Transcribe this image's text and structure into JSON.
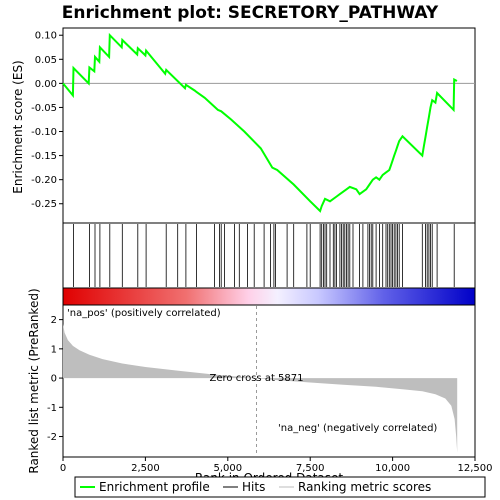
{
  "chart_data": {
    "type": "line",
    "title": "Enrichment plot: SECRETORY_PATHWAY",
    "es_panel": {
      "ylabel": "Enrichment score (ES)",
      "ylim": [
        -0.29,
        0.115
      ],
      "yticks": [
        0.1,
        0.05,
        0.0,
        -0.05,
        -0.1,
        -0.15,
        -0.2,
        -0.25
      ],
      "ytick_labels": [
        "0.10",
        "0.05",
        "0.00",
        "-0.05",
        "-0.10",
        "-0.15",
        "-0.20",
        "-0.25"
      ],
      "series": [
        {
          "name": "Enrichment profile",
          "color": "#00ff00",
          "x": [
            0,
            300,
            320,
            780,
            800,
            950,
            970,
            1100,
            1120,
            1400,
            1420,
            1780,
            1800,
            2250,
            2270,
            2500,
            2520,
            3100,
            3130,
            3700,
            3730,
            4000,
            4050,
            4300,
            4700,
            4800,
            5100,
            5500,
            6000,
            6350,
            6500,
            7000,
            7500,
            7800,
            7850,
            7950,
            8100,
            8300,
            8400,
            8500,
            8600,
            8700,
            8900,
            9000,
            9100,
            9200,
            9300,
            9400,
            9500,
            9600,
            9700,
            9800,
            9900,
            9950,
            10000,
            10050,
            10100,
            10150,
            10200,
            10300,
            10900,
            10950,
            11000,
            11050,
            11100,
            11150,
            11200,
            11300,
            11350,
            11850,
            11870,
            11950
          ],
          "y": [
            0.0,
            -0.025,
            0.032,
            0.0,
            0.033,
            0.025,
            0.055,
            0.045,
            0.075,
            0.055,
            0.1,
            0.075,
            0.09,
            0.06,
            0.073,
            0.058,
            0.068,
            0.02,
            0.028,
            -0.01,
            -0.003,
            -0.015,
            -0.018,
            -0.03,
            -0.055,
            -0.058,
            -0.075,
            -0.1,
            -0.135,
            -0.175,
            -0.18,
            -0.21,
            -0.245,
            -0.265,
            -0.255,
            -0.24,
            -0.245,
            -0.235,
            -0.23,
            -0.225,
            -0.22,
            -0.215,
            -0.22,
            -0.23,
            -0.225,
            -0.22,
            -0.21,
            -0.2,
            -0.195,
            -0.2,
            -0.19,
            -0.185,
            -0.18,
            -0.17,
            -0.16,
            -0.15,
            -0.14,
            -0.13,
            -0.12,
            -0.11,
            -0.15,
            -0.13,
            -0.11,
            -0.09,
            -0.07,
            -0.05,
            -0.035,
            -0.04,
            -0.02,
            -0.055,
            0.008,
            0.005
          ]
        }
      ]
    },
    "hits_panel": {
      "series_name": "Hits",
      "hit_positions": [
        320,
        800,
        970,
        1120,
        1420,
        1800,
        2270,
        2520,
        3130,
        3480,
        3730,
        4050,
        4600,
        4750,
        4800,
        4900,
        5200,
        5350,
        5600,
        5800,
        6100,
        6300,
        6400,
        6450,
        6800,
        7000,
        7400,
        7500,
        7800,
        7850,
        7900,
        7950,
        8000,
        8100,
        8200,
        8250,
        8300,
        8400,
        8450,
        8500,
        8550,
        8600,
        8650,
        8700,
        8800,
        9000,
        9100,
        9250,
        9300,
        9350,
        9400,
        9500,
        9600,
        9700,
        9800,
        9850,
        9900,
        9950,
        10000,
        10050,
        10100,
        10150,
        10200,
        10300,
        10900,
        11000,
        11050,
        11100,
        11150,
        11200,
        11350,
        11870
      ]
    },
    "metric_panel": {
      "series_name": "Ranking metric scores",
      "ylabel": "Ranked list metric (PreRanked)",
      "ylim": [
        -2.7,
        2.5
      ],
      "yticks": [
        2,
        1,
        0,
        -1,
        -2
      ],
      "ytick_labels": [
        "2",
        "1",
        "0",
        "-1",
        "-2"
      ],
      "x": [
        0,
        50,
        150,
        300,
        500,
        800,
        1200,
        1800,
        2500,
        3500,
        4500,
        5300,
        5871,
        6500,
        7500,
        8500,
        9500,
        10300,
        10900,
        11300,
        11600,
        11780,
        11880,
        11930,
        11960
      ],
      "y": [
        1.85,
        1.55,
        1.3,
        1.1,
        0.95,
        0.8,
        0.65,
        0.5,
        0.38,
        0.25,
        0.13,
        0.05,
        0.0,
        -0.07,
        -0.15,
        -0.23,
        -0.3,
        -0.38,
        -0.45,
        -0.55,
        -0.7,
        -0.95,
        -1.4,
        -2.0,
        -2.55
      ],
      "zero_cross_label": "Zero cross at 5871",
      "zero_cross": 5871,
      "pos_label": "'na_pos' (positively correlated)",
      "neg_label": "'na_neg' (negatively correlated)"
    },
    "x_axis": {
      "label": "Rank in Ordered Dataset",
      "xlim": [
        0,
        12500
      ],
      "xticks": [
        0,
        2500,
        5000,
        7500,
        10000,
        12500
      ],
      "xtick_labels": [
        "0",
        "2,500",
        "5,000",
        "7,500",
        "10,000",
        "12,500"
      ]
    },
    "legend": {
      "placement": "bottom",
      "entries": [
        {
          "label": "Enrichment profile",
          "color": "#00ff00"
        },
        {
          "label": "Hits",
          "color": "#000000"
        },
        {
          "label": "Ranking metric scores",
          "color": "#bebebe"
        }
      ]
    },
    "colors": {
      "profile": "#00ff00",
      "hits": "#000000",
      "metric_fill": "#bebebe",
      "pos_label": "#cc0000",
      "neg_label": "#0000cc",
      "bar_red": "#e00000",
      "bar_blue": "#0000c8"
    }
  }
}
